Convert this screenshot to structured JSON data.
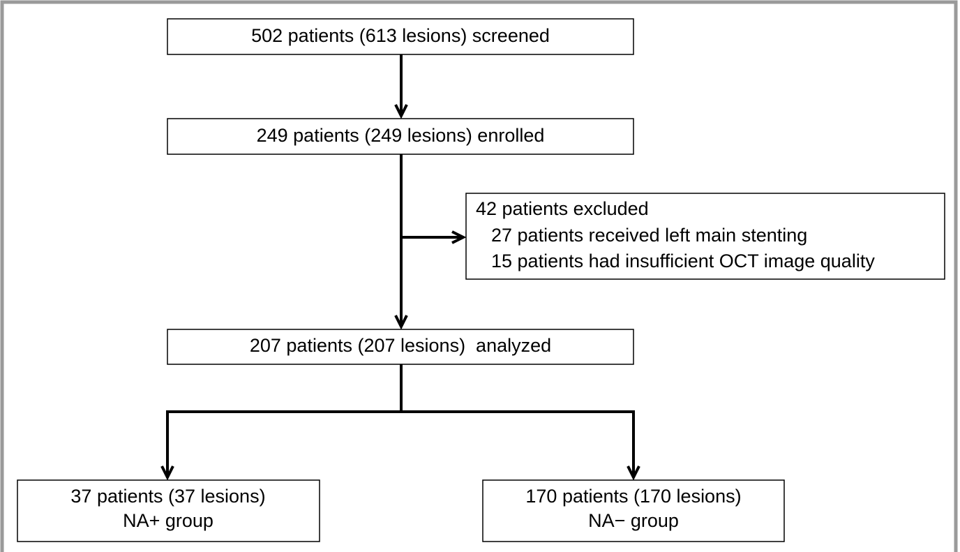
{
  "nodes": [
    {
      "lines": [
        "502 patients (613 lesions) screened"
      ]
    },
    {
      "lines": [
        "249 patients (249 lesions) enrolled"
      ]
    },
    {
      "lines": [
        "42 patients excluded",
        "27 patients received left main stenting",
        "15 patients had insufficient OCT image quality"
      ]
    },
    {
      "lines": [
        "207 patients (207 lesions)  analyzed"
      ]
    },
    {
      "lines": [
        "37 patients (37 lesions)",
        "NA+ group"
      ]
    },
    {
      "lines": [
        "170 patients (170 lesions)",
        "NA− group"
      ]
    }
  ]
}
